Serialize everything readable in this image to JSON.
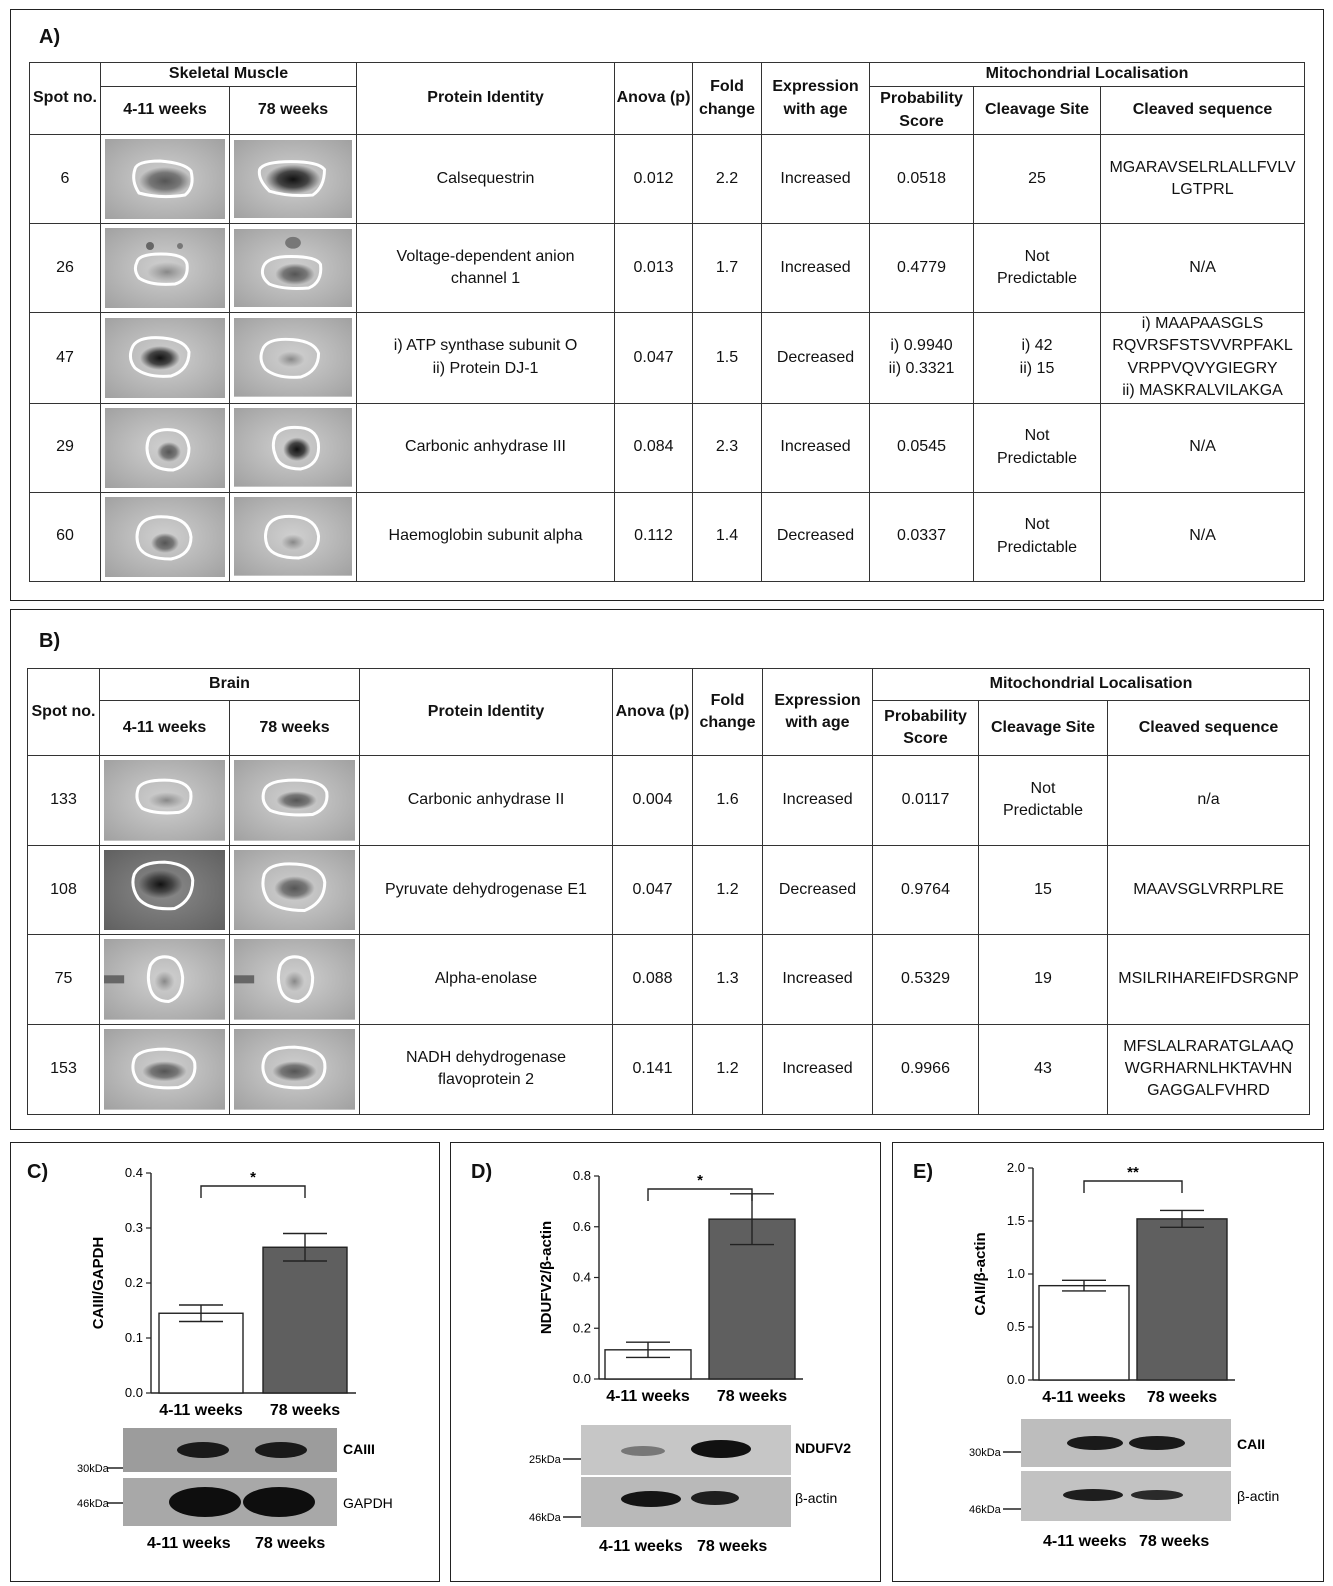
{
  "panelA": {
    "label": "A)",
    "group_label": "Skeletal Muscle",
    "headers": {
      "spot": "Spot no.",
      "early": "4-11 weeks",
      "late": "78 weeks",
      "protein": "Protein Identity",
      "anova": "Anova (p)",
      "fold": "Fold change",
      "expr": "Expression with age",
      "mito": "Mitochondrial Localisation",
      "prob": "Probability Score",
      "cleave": "Cleavage Site",
      "seq": "Cleaved sequence"
    },
    "rows": [
      {
        "spot": "6",
        "protein": "Calsequestrin",
        "anova": "0.012",
        "fold": "2.2",
        "expr": "Increased",
        "prob": "0.0518",
        "cleave": "25",
        "seq": "MGARAVSELRLALLFVLV LGTPRL"
      },
      {
        "spot": "26",
        "protein": "Voltage-dependent anion channel 1",
        "anova": "0.013",
        "fold": "1.7",
        "expr": "Increased",
        "prob": "0.4779",
        "cleave": "Not Predictable",
        "seq": "N/A"
      },
      {
        "spot": "47",
        "protein_1": "i) ATP synthase subunit O",
        "protein_2": "ii) Protein DJ-1",
        "anova": "0.047",
        "fold": "1.5",
        "expr": "Decreased",
        "prob_1": "i) 0.9940",
        "prob_2": "ii) 0.3321",
        "cleave_1": "i) 42",
        "cleave_2": "ii) 15",
        "seq_1": "i) MAAPAASGLS",
        "seq_2": "RQVRSFSTSVVRPFAKL",
        "seq_3": "VRPPVQVYGIEGRY",
        "seq_4": "ii) MASKRALVILAKGA"
      },
      {
        "spot": "29",
        "protein": "Carbonic anhydrase III",
        "anova": "0.084",
        "fold": "2.3",
        "expr": "Increased",
        "prob": "0.0545",
        "cleave": "Not Predictable",
        "seq": "N/A"
      },
      {
        "spot": "60",
        "protein": "Haemoglobin subunit alpha",
        "anova": "0.112",
        "fold": "1.4",
        "expr": "Decreased",
        "prob": "0.0337",
        "cleave": "Not Predictable",
        "seq": "N/A"
      }
    ]
  },
  "panelB": {
    "label": "B)",
    "group_label": "Brain",
    "headers": {
      "spot": "Spot no.",
      "early": "4-11 weeks",
      "late": "78 weeks",
      "protein": "Protein Identity",
      "anova": "Anova (p)",
      "fold": "Fold change",
      "expr": "Expression with age",
      "mito": "Mitochondrial Localisation",
      "prob": "Probability Score",
      "cleave": "Cleavage Site",
      "seq": "Cleaved sequence"
    },
    "rows": [
      {
        "spot": "133",
        "protein": "Carbonic anhydrase II",
        "anova": "0.004",
        "fold": "1.6",
        "expr": "Increased",
        "prob": "0.0117",
        "cleave": "Not Predictable",
        "seq": "n/a"
      },
      {
        "spot": "108",
        "protein": "Pyruvate dehydrogenase E1",
        "anova": "0.047",
        "fold": "1.2",
        "expr": "Decreased",
        "prob": "0.9764",
        "cleave": "15",
        "seq": "MAAVSGLVRRPLRE"
      },
      {
        "spot": "75",
        "protein": "Alpha-enolase",
        "anova": "0.088",
        "fold": "1.3",
        "expr": "Increased",
        "prob": "0.5329",
        "cleave": "19",
        "seq": "MSILRIHAREIFDSRGNP"
      },
      {
        "spot": "153",
        "protein": "NADH dehydrogenase flavoprotein 2",
        "anova": "0.141",
        "fold": "1.2",
        "expr": "Increased",
        "prob": "0.9966",
        "cleave": "43",
        "seq": "MFSLALRARATGLAAQ WGRHARNLHKTAVHN GAGGALFVHRD"
      }
    ]
  },
  "panelC": {
    "label": "C)",
    "blot_labels": [
      "CAIII",
      "GAPDH"
    ],
    "markers": [
      "30kDa",
      "46kDa"
    ],
    "blot_xlabels": [
      "4-11 weeks",
      "78 weeks"
    ]
  },
  "panelD": {
    "label": "D)",
    "blot_labels": [
      "NDUFV2",
      "β-actin"
    ],
    "markers": [
      "25kDa",
      "46kDa"
    ],
    "blot_xlabels": [
      "4-11 weeks",
      "78 weeks"
    ]
  },
  "panelE": {
    "label": "E)",
    "blot_labels": [
      "CAII",
      "β-actin"
    ],
    "markers": [
      "30kDa",
      "46kDa"
    ],
    "blot_xlabels": [
      "4-11 weeks",
      "78 weeks"
    ]
  },
  "chart_data": [
    {
      "type": "bar",
      "ylabel": "CAIII/GAPDH",
      "categories": [
        "4-11 weeks",
        "78 weeks"
      ],
      "values": [
        0.145,
        0.265
      ],
      "errors": [
        0.015,
        0.025
      ],
      "ylim": [
        0,
        0.4
      ],
      "yticks": [
        0.0,
        0.1,
        0.2,
        0.3,
        0.4
      ],
      "tick_labels": [
        "0.0",
        "0.1",
        "0.2",
        "0.3",
        "0.4"
      ],
      "significance": "*",
      "colors": [
        "#ffffff",
        "#5f5f5f"
      ]
    },
    {
      "type": "bar",
      "ylabel": "NDUFV2/β-actin",
      "categories": [
        "4-11 weeks",
        "78 weeks"
      ],
      "values": [
        0.115,
        0.63
      ],
      "errors": [
        0.03,
        0.1
      ],
      "ylim": [
        0,
        0.8
      ],
      "yticks": [
        0.0,
        0.2,
        0.4,
        0.6,
        0.8
      ],
      "tick_labels": [
        "0.0",
        "0.2",
        "0.4",
        "0.6",
        "0.8"
      ],
      "significance": "*",
      "colors": [
        "#ffffff",
        "#5f5f5f"
      ]
    },
    {
      "type": "bar",
      "ylabel": "CAII/β-actin",
      "categories": [
        "4-11 weeks",
        "78 weeks"
      ],
      "values": [
        0.89,
        1.52
      ],
      "errors": [
        0.05,
        0.08
      ],
      "ylim": [
        0,
        2.0
      ],
      "yticks": [
        0.0,
        0.5,
        1.0,
        1.5,
        2.0
      ],
      "tick_labels": [
        "0.0",
        "0.5",
        "1.0",
        "1.5",
        "2.0"
      ],
      "significance": "**",
      "colors": [
        "#ffffff",
        "#5f5f5f"
      ]
    }
  ]
}
